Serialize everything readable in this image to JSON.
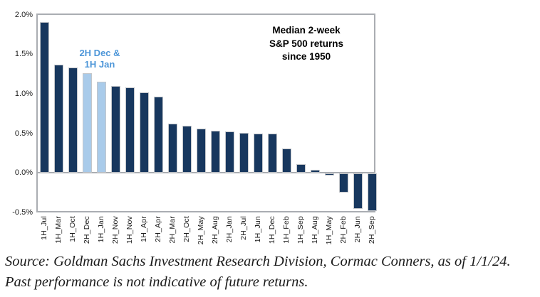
{
  "chart": {
    "title_lines": [
      "Median 2-week",
      "S&P 500 returns",
      "since 1950"
    ],
    "annotation_lines": [
      "2H Dec &",
      "1H Jan"
    ]
  },
  "chart_data": {
    "type": "bar",
    "title": "Median 2-week S&P 500 returns since 1950",
    "categories": [
      "1H_Jul",
      "1H_Mar",
      "1H_Oct",
      "2H_Dec",
      "1H_Jan",
      "2H_Nov",
      "1H_Nov",
      "1H_Apr",
      "2H_Apr",
      "2H_Mar",
      "2H_Oct",
      "2H_May",
      "2H_Aug",
      "2H_Jan",
      "2H_Jul",
      "1H_Jun",
      "1H_Dec",
      "1H_Feb",
      "1H_Sep",
      "1H_Aug",
      "1H_May",
      "2H_Feb",
      "2H_Jun",
      "2H_Sep"
    ],
    "values": [
      1.91,
      1.37,
      1.33,
      1.26,
      1.15,
      1.1,
      1.08,
      1.02,
      0.96,
      0.62,
      0.6,
      0.56,
      0.53,
      0.52,
      0.51,
      0.5,
      0.5,
      0.31,
      0.11,
      0.04,
      -0.02,
      -0.24,
      -0.45,
      -0.47
    ],
    "unit": "%",
    "highlighted_categories": [
      "2H_Dec",
      "1H_Jan"
    ],
    "highlight_annotation": "2H Dec & 1H Jan",
    "y_ticks": [
      2.0,
      1.5,
      1.0,
      0.5,
      0.0,
      -0.5
    ],
    "y_tick_labels": [
      "2.0%",
      "1.5%",
      "1.0%",
      "0.5%",
      "0.0%",
      "-0.5%"
    ],
    "ylim": [
      -0.5,
      2.0
    ],
    "grid": false,
    "legend": "none",
    "xlabel": "",
    "ylabel": "",
    "colors": {
      "bar": "#17375E",
      "highlight": "#A9CBEA",
      "bar_border": "#c3c6ca",
      "annotation_text": "#4D96D8",
      "axis_frame": "#aaadb2"
    }
  },
  "source": {
    "line1": "Source: Goldman Sachs Investment Research Division, Cormac Conners, as of",
    "line2": "1/1/24. Past performance is not indicative of future returns."
  }
}
